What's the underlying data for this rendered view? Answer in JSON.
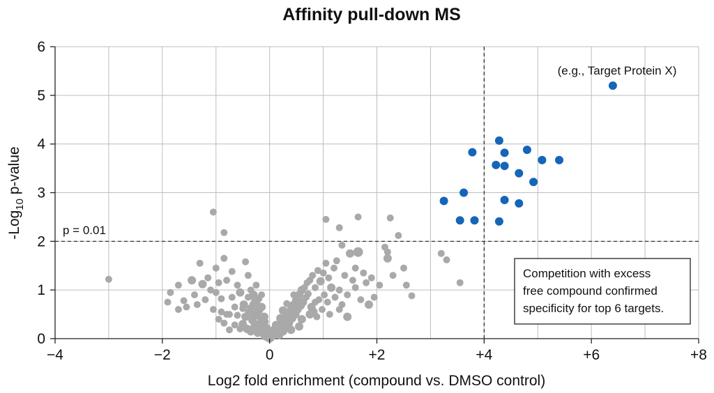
{
  "chart_data": {
    "type": "scatter",
    "title": "Affinity pull-down MS",
    "xlabel": "Log2 fold enrichment (compound vs. DMSO control)",
    "ylabel_main": "-Log",
    "ylabel_sub": "10",
    "ylabel_tail": " p-value",
    "xlim": [
      -4,
      8
    ],
    "ylim": [
      0,
      6
    ],
    "xticks": [
      -4,
      -2,
      0,
      2,
      4,
      6,
      8
    ],
    "xtick_labels": [
      "−4",
      "−2",
      "0",
      "+2",
      "+4",
      "+6",
      "+8"
    ],
    "yticks": [
      0,
      1,
      2,
      3,
      4,
      5,
      6
    ],
    "ytick_labels": [
      "0",
      "1",
      "2",
      "3",
      "4",
      "5",
      "6"
    ],
    "grid": true,
    "thresholds": {
      "y": 2,
      "x": 4,
      "y_label": "p = 0.01"
    },
    "colors": {
      "background": "#a9a9a9",
      "significant": "#1565b8"
    },
    "series": [
      {
        "role": "background",
        "color": "#a9a9a9",
        "points": [
          [
            -3.0,
            1.22,
            5
          ],
          [
            -1.05,
            2.6,
            5
          ],
          [
            -0.85,
            2.18,
            5
          ],
          [
            -1.9,
            0.75,
            5
          ],
          [
            -1.7,
            1.1,
            5
          ],
          [
            -1.6,
            0.78,
            5
          ],
          [
            -1.55,
            0.65,
            5
          ],
          [
            -1.4,
            0.9,
            5
          ],
          [
            -1.35,
            0.7,
            5
          ],
          [
            -1.3,
            1.55,
            5
          ],
          [
            -1.25,
            1.12,
            6
          ],
          [
            -1.2,
            0.8,
            5
          ],
          [
            -1.15,
            1.25,
            5
          ],
          [
            -1.1,
            1.0,
            5
          ],
          [
            -1.05,
            0.6,
            5
          ],
          [
            -1.0,
            1.45,
            5
          ],
          [
            -0.95,
            0.4,
            5
          ],
          [
            -0.9,
            0.82,
            5
          ],
          [
            -0.85,
            1.65,
            5
          ],
          [
            -0.8,
            1.2,
            5
          ],
          [
            -1.0,
            0.95,
            5
          ],
          [
            -0.75,
            0.5,
            5
          ],
          [
            -0.7,
            1.38,
            5
          ],
          [
            -0.65,
            0.28,
            5
          ],
          [
            -0.6,
            1.1,
            5
          ],
          [
            -0.55,
            0.95,
            6
          ],
          [
            -0.5,
            0.62,
            5
          ],
          [
            -0.45,
            1.58,
            5
          ],
          [
            -0.4,
            1.3,
            5
          ],
          [
            -0.35,
            1.0,
            5
          ],
          [
            -0.3,
            0.5,
            6
          ],
          [
            -0.28,
            0.8,
            5
          ],
          [
            -0.25,
            1.1,
            5
          ],
          [
            -0.2,
            0.3,
            6
          ],
          [
            -0.18,
            0.6,
            5
          ],
          [
            -0.15,
            0.9,
            5
          ],
          [
            -0.12,
            0.45,
            5
          ],
          [
            -0.1,
            0.2,
            6
          ],
          [
            -0.08,
            0.35,
            5
          ],
          [
            -0.05,
            0.1,
            6
          ],
          [
            -0.5,
            0.3,
            6
          ],
          [
            -0.45,
            0.45,
            6
          ],
          [
            -0.42,
            0.2,
            6
          ],
          [
            -0.38,
            0.55,
            6
          ],
          [
            -0.35,
            0.15,
            6
          ],
          [
            -0.32,
            0.38,
            6
          ],
          [
            -0.3,
            0.7,
            6
          ],
          [
            -0.28,
            0.25,
            6
          ],
          [
            -0.25,
            0.48,
            6
          ],
          [
            -0.22,
            0.12,
            6
          ],
          [
            -0.2,
            0.58,
            6
          ],
          [
            -0.18,
            0.28,
            6
          ],
          [
            -0.15,
            0.4,
            6
          ],
          [
            -0.12,
            0.18,
            6
          ],
          [
            -0.1,
            0.08,
            6
          ],
          [
            -0.08,
            0.05,
            6
          ],
          [
            -0.06,
            0.22,
            6
          ],
          [
            -0.04,
            0.03,
            6
          ],
          [
            -0.02,
            0.12,
            6
          ],
          [
            0.0,
            0.02,
            7
          ],
          [
            -0.55,
            0.2,
            5
          ],
          [
            -0.6,
            0.48,
            5
          ],
          [
            -0.48,
            0.7,
            6
          ],
          [
            -0.4,
            0.85,
            5
          ],
          [
            -0.35,
            0.62,
            6
          ],
          [
            -0.3,
            0.9,
            6
          ],
          [
            -0.25,
            0.75,
            6
          ],
          [
            -0.2,
            0.82,
            5
          ],
          [
            -0.15,
            0.65,
            6
          ],
          [
            -0.1,
            0.45,
            6
          ],
          [
            -0.65,
            0.65,
            5
          ],
          [
            -0.7,
            0.85,
            5
          ],
          [
            -0.75,
            0.18,
            5
          ],
          [
            -0.8,
            0.5,
            5
          ],
          [
            -0.85,
            0.32,
            5
          ],
          [
            -0.9,
            0.55,
            5
          ],
          [
            -0.95,
            1.15,
            5
          ],
          [
            -1.45,
            1.2,
            6
          ],
          [
            -1.85,
            0.95,
            5
          ],
          [
            -1.7,
            0.6,
            5
          ],
          [
            0.05,
            0.05,
            6
          ],
          [
            0.1,
            0.12,
            6
          ],
          [
            0.15,
            0.2,
            6
          ],
          [
            0.18,
            0.08,
            6
          ],
          [
            0.22,
            0.3,
            6
          ],
          [
            0.25,
            0.15,
            6
          ],
          [
            0.28,
            0.4,
            6
          ],
          [
            0.3,
            0.22,
            6
          ],
          [
            0.33,
            0.5,
            6
          ],
          [
            0.36,
            0.32,
            6
          ],
          [
            0.4,
            0.6,
            6
          ],
          [
            0.42,
            0.42,
            6
          ],
          [
            0.45,
            0.7,
            6
          ],
          [
            0.48,
            0.5,
            6
          ],
          [
            0.5,
            0.8,
            6
          ],
          [
            0.52,
            0.6,
            6
          ],
          [
            0.55,
            0.9,
            6
          ],
          [
            0.58,
            0.68,
            6
          ],
          [
            0.6,
            1.0,
            6
          ],
          [
            0.62,
            0.75,
            6
          ],
          [
            0.65,
            1.05,
            5
          ],
          [
            0.68,
            0.85,
            5
          ],
          [
            0.7,
            1.15,
            5
          ],
          [
            0.72,
            0.92,
            5
          ],
          [
            0.75,
            1.2,
            5
          ],
          [
            0.78,
            0.65,
            6
          ],
          [
            0.8,
            1.3,
            5
          ],
          [
            0.82,
            0.55,
            6
          ],
          [
            0.85,
            1.05,
            5
          ],
          [
            0.88,
            0.45,
            5
          ],
          [
            0.9,
            1.4,
            5
          ],
          [
            0.92,
            0.8,
            5
          ],
          [
            0.95,
            1.18,
            6
          ],
          [
            0.98,
            0.6,
            5
          ],
          [
            1.0,
            1.35,
            5
          ],
          [
            1.02,
            0.9,
            5
          ],
          [
            1.05,
            1.55,
            5
          ],
          [
            1.08,
            0.75,
            5
          ],
          [
            1.1,
            1.25,
            5
          ],
          [
            1.12,
            0.5,
            5
          ],
          [
            1.15,
            1.05,
            6
          ],
          [
            1.2,
            1.45,
            5
          ],
          [
            1.22,
            0.85,
            5
          ],
          [
            1.25,
            1.6,
            5
          ],
          [
            1.3,
            1.0,
            5
          ],
          [
            1.35,
            0.7,
            5
          ],
          [
            1.4,
            1.3,
            5
          ],
          [
            1.45,
            0.9,
            5
          ],
          [
            1.5,
            1.75,
            6
          ],
          [
            1.55,
            1.2,
            5
          ],
          [
            1.6,
            1.45,
            5
          ],
          [
            1.65,
            1.78,
            7
          ],
          [
            1.7,
            0.8,
            5
          ],
          [
            1.75,
            1.35,
            5
          ],
          [
            1.8,
            1.15,
            5
          ],
          [
            1.9,
            1.25,
            5
          ],
          [
            1.05,
            2.45,
            5
          ],
          [
            1.3,
            2.28,
            5
          ],
          [
            1.65,
            2.5,
            5
          ],
          [
            1.35,
            1.92,
            5
          ],
          [
            2.25,
            2.48,
            5
          ],
          [
            2.4,
            2.12,
            5
          ],
          [
            2.15,
            1.88,
            5
          ],
          [
            2.2,
            1.65,
            6
          ],
          [
            2.05,
            1.1,
            5
          ],
          [
            1.95,
            0.85,
            5
          ],
          [
            2.3,
            1.3,
            5
          ],
          [
            2.5,
            1.45,
            5
          ],
          [
            2.65,
            0.88,
            5
          ],
          [
            1.85,
            0.7,
            6
          ],
          [
            1.45,
            0.45,
            6
          ],
          [
            1.3,
            0.6,
            5
          ],
          [
            1.6,
            1.05,
            5
          ],
          [
            2.55,
            1.1,
            5
          ],
          [
            3.2,
            1.75,
            5
          ],
          [
            3.3,
            1.62,
            5
          ],
          [
            3.55,
            1.15,
            5
          ],
          [
            2.2,
            1.78,
            5
          ],
          [
            0.35,
            0.3,
            6
          ],
          [
            0.45,
            0.9,
            5
          ],
          [
            0.6,
            0.4,
            6
          ],
          [
            0.75,
            0.5,
            6
          ],
          [
            0.85,
            0.75,
            5
          ],
          [
            0.55,
            0.25,
            6
          ],
          [
            0.25,
            0.58,
            6
          ],
          [
            0.32,
            0.72,
            5
          ],
          [
            0.4,
            0.18,
            6
          ],
          [
            0.2,
            0.42,
            6
          ],
          [
            0.12,
            0.28,
            6
          ],
          [
            0.08,
            0.18,
            6
          ]
        ]
      },
      {
        "role": "significant",
        "color": "#1565b8",
        "points": [
          [
            6.4,
            5.2,
            6
          ],
          [
            4.28,
            4.07,
            6
          ],
          [
            3.78,
            3.83,
            6
          ],
          [
            4.38,
            3.82,
            6
          ],
          [
            4.8,
            3.88,
            6
          ],
          [
            4.22,
            3.57,
            6
          ],
          [
            4.38,
            3.55,
            6
          ],
          [
            5.08,
            3.67,
            6
          ],
          [
            5.4,
            3.67,
            6
          ],
          [
            4.65,
            3.4,
            6
          ],
          [
            4.92,
            3.22,
            6
          ],
          [
            3.62,
            3.0,
            6
          ],
          [
            3.25,
            2.83,
            6
          ],
          [
            4.38,
            2.85,
            6
          ],
          [
            4.65,
            2.78,
            6
          ],
          [
            3.55,
            2.43,
            6
          ],
          [
            3.82,
            2.43,
            6
          ],
          [
            4.28,
            2.41,
            6
          ]
        ]
      }
    ],
    "annotations": {
      "top_point_label": "(e.g., Target Protein X)",
      "box_lines": [
        "Competition with excess",
        "free compound confirmed",
        "specificity for top 6 targets."
      ]
    }
  }
}
